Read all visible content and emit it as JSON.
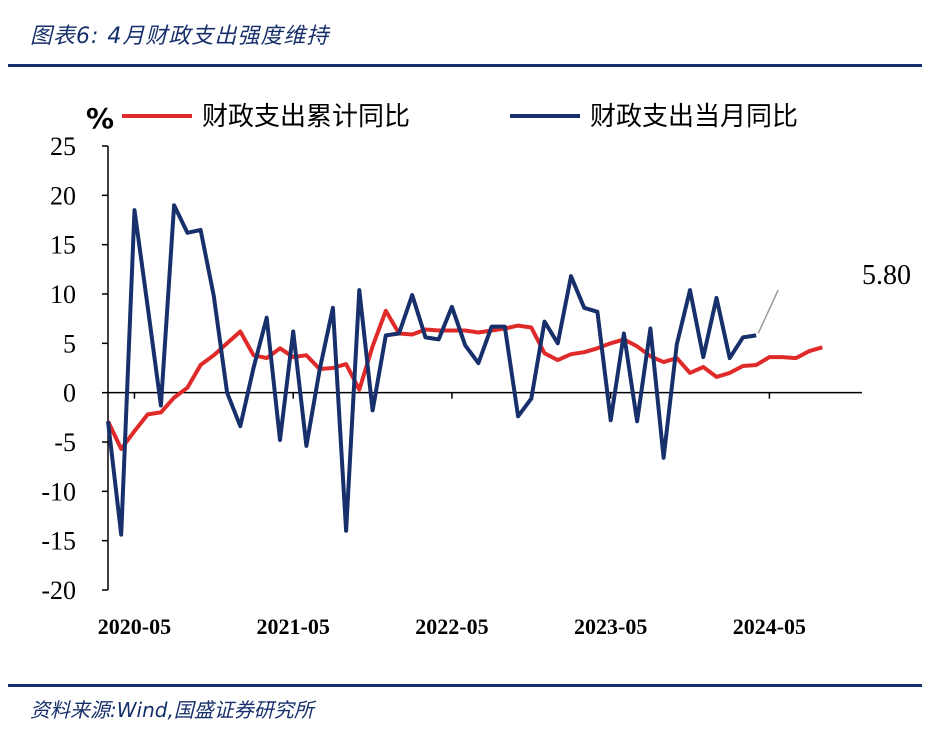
{
  "header": {
    "title": "图表6:  4月财政支出强度维持"
  },
  "footer": {
    "source": "资料来源:Wind,国盛证券研究所"
  },
  "chart_data": {
    "type": "line",
    "unit_label": "%",
    "ylim": [
      -20,
      25
    ],
    "yticks": [
      25,
      20,
      15,
      10,
      5,
      0,
      -5,
      -10,
      -15,
      -20
    ],
    "xtick_labels": [
      "2020-05",
      "2021-05",
      "2022-05",
      "2023-05",
      "2024-05"
    ],
    "annotation": "5.80",
    "legend_placement": "top",
    "series": [
      {
        "name": "财政支出累计同比",
        "color": "#e02a2a",
        "x_start": "2020-03",
        "values": [
          -2.9,
          -5.7,
          -3.9,
          -2.2,
          -2.0,
          -0.5,
          0.5,
          2.8,
          3.8,
          5.0,
          6.2,
          3.8,
          3.5,
          4.5,
          3.6,
          3.8,
          2.4,
          2.5,
          2.9,
          0.3,
          4.7,
          8.3,
          6.0,
          5.9,
          6.4,
          6.3,
          6.3,
          6.3,
          6.1,
          6.3,
          6.5,
          6.8,
          6.6,
          4.0,
          3.3,
          3.9,
          4.1,
          4.5,
          5.0,
          5.4,
          4.7,
          3.7,
          3.1,
          3.5,
          2.0,
          2.6,
          1.6,
          2.0,
          2.7,
          2.8,
          3.6,
          3.6,
          3.5,
          4.2,
          4.6
        ],
        "visual_x_index_offset": 0
      },
      {
        "name": "财政支出当月同比",
        "color": "#17306b",
        "x_start": "2020-03",
        "values": [
          -2.9,
          -14.4,
          18.5,
          8.7,
          -1.3,
          19.0,
          16.2,
          16.5,
          9.8,
          0.0,
          -3.4,
          2.5,
          7.6,
          -4.8,
          6.2,
          -5.4,
          2.3,
          8.6,
          -14.0,
          10.4,
          -1.8,
          5.8,
          6.0,
          9.9,
          5.6,
          5.4,
          8.7,
          4.8,
          3.0,
          6.7,
          6.7,
          -2.4,
          -0.6,
          7.2,
          5.0,
          11.8,
          8.6,
          8.2,
          -2.8,
          6.0,
          -2.9,
          6.5,
          -6.6,
          4.9,
          10.4,
          3.6,
          9.6,
          3.5,
          5.6,
          5.8
        ]
      }
    ]
  }
}
